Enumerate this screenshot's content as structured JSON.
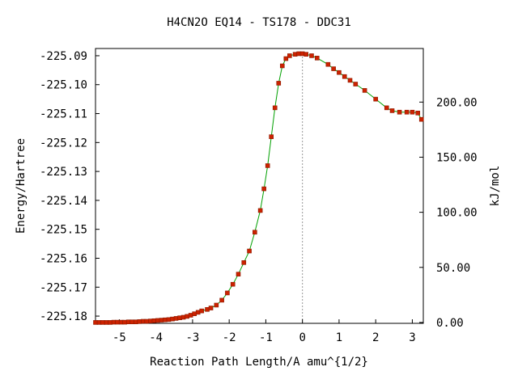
{
  "chart_data": {
    "type": "line",
    "title": "H4CN2O    EQ14 - TS178 - DDC31",
    "xlabel": "Reaction Path Length/A amu^{1/2}",
    "ylabel": "Energy/Hartree",
    "y2label": "kJ/mol",
    "xlim": [
      -5.65,
      3.3
    ],
    "ylim": [
      -225.1825,
      -225.0875
    ],
    "y2_base_hartree": -225.1822,
    "hartree_to_kj": 2625.5,
    "x_ticks": [
      -5,
      -4,
      -3,
      -2,
      -1,
      0,
      1,
      2,
      3
    ],
    "x_tick_labels": [
      "-5",
      "-4",
      "-3",
      "-2",
      "-1",
      "0",
      "1",
      "2",
      "3"
    ],
    "y_ticks": [
      -225.09,
      -225.1,
      -225.11,
      -225.12,
      -225.13,
      -225.14,
      -225.15,
      -225.16,
      -225.17,
      -225.18
    ],
    "y_tick_labels": [
      "-225.09",
      "-225.10",
      "-225.11",
      "-225.12",
      "-225.13",
      "-225.14",
      "-225.15",
      "-225.16",
      "-225.17",
      "-225.18"
    ],
    "y2_ticks": [
      0,
      50,
      100,
      150,
      200
    ],
    "y2_tick_labels": [
      "0.00",
      "50.00",
      "100.00",
      "150.00",
      "200.00"
    ],
    "ts_marker_x": 0,
    "line_color": "#00a000",
    "marker_color": "#cc2200",
    "marker_edge_color": "#8b1a00",
    "series": [
      {
        "x": [
          -5.65,
          -5.55,
          -5.45,
          -5.35,
          -5.25,
          -5.15,
          -5.05,
          -4.95,
          -4.85,
          -4.75,
          -4.65,
          -4.55,
          -4.45,
          -4.35,
          -4.25,
          -4.15,
          -4.05,
          -3.95,
          -3.85,
          -3.75,
          -3.65,
          -3.55,
          -3.45,
          -3.35,
          -3.25,
          -3.15,
          -3.05,
          -2.95,
          -2.85,
          -2.75,
          -2.6,
          -2.5,
          -2.35,
          -2.2,
          -2.05,
          -1.9,
          -1.75,
          -1.6,
          -1.45,
          -1.3,
          -1.15,
          -1.05,
          -0.95,
          -0.85,
          -0.75,
          -0.65,
          -0.55,
          -0.45,
          -0.35,
          -0.2,
          -0.1,
          0.0,
          0.1,
          0.25,
          0.4,
          0.7,
          0.85,
          1.0,
          1.15,
          1.3,
          1.45,
          1.7,
          2.0,
          2.3,
          2.45,
          2.65,
          2.85,
          3.0,
          3.15,
          3.25
        ],
        "y": [
          -225.1822,
          -225.1822,
          -225.1822,
          -225.1822,
          -225.1822,
          -225.1821,
          -225.1821,
          -225.1821,
          -225.1821,
          -225.182,
          -225.182,
          -225.182,
          -225.1819,
          -225.1818,
          -225.1818,
          -225.1817,
          -225.1816,
          -225.1815,
          -225.1814,
          -225.1813,
          -225.1812,
          -225.181,
          -225.1808,
          -225.1806,
          -225.1804,
          -225.1801,
          -225.1797,
          -225.1792,
          -225.1787,
          -225.1782,
          -225.1777,
          -225.1772,
          -225.1762,
          -225.1745,
          -225.172,
          -225.169,
          -225.1655,
          -225.1615,
          -225.1575,
          -225.151,
          -225.1435,
          -225.136,
          -225.128,
          -225.118,
          -225.108,
          -225.0995,
          -225.0935,
          -225.091,
          -225.09,
          -225.0895,
          -225.0893,
          -225.0893,
          -225.0895,
          -225.09,
          -225.0908,
          -225.093,
          -225.0945,
          -225.0958,
          -225.0972,
          -225.0985,
          -225.0998,
          -225.102,
          -225.105,
          -225.108,
          -225.109,
          -225.1095,
          -225.1095,
          -225.1095,
          -225.1098,
          -225.112
        ]
      }
    ]
  }
}
